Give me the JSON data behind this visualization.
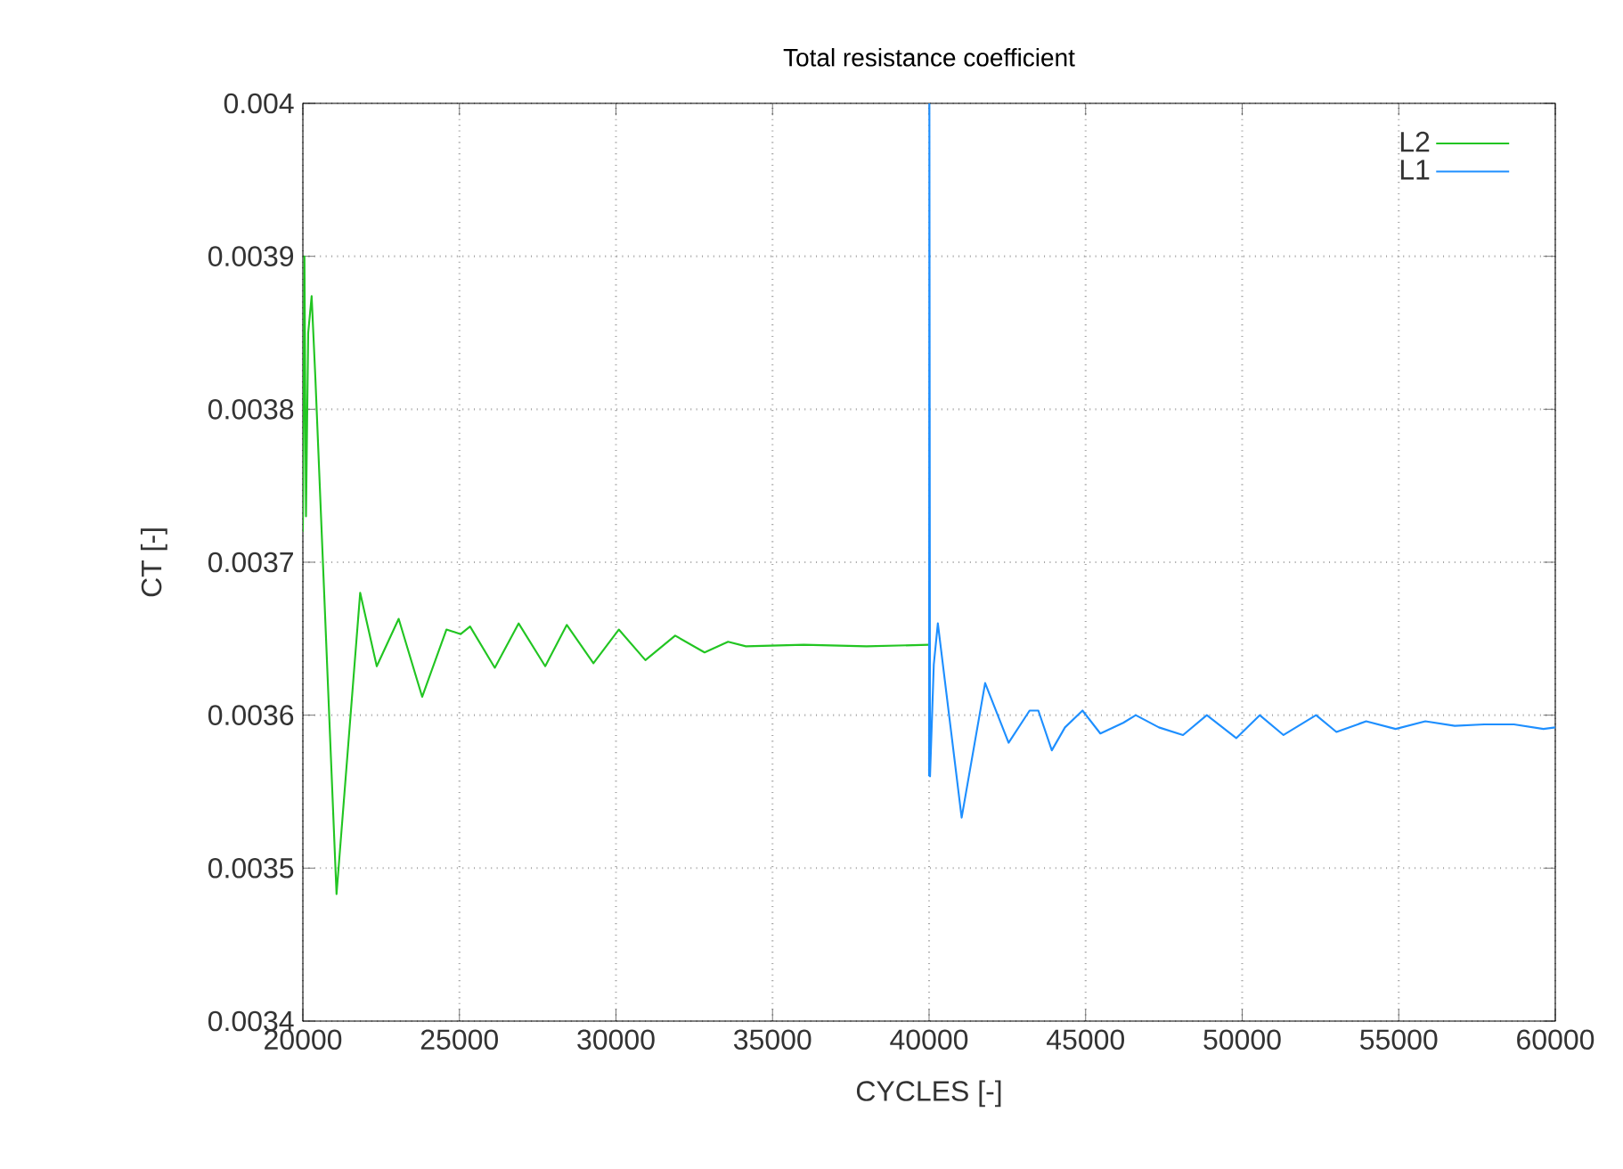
{
  "chart_data": {
    "type": "line",
    "title": "Total resistance coefficient",
    "xlabel": "CYCLES [-]",
    "ylabel": "CT [-]",
    "xlim": [
      20000,
      60000
    ],
    "ylim": [
      0.0034,
      0.004
    ],
    "xticks": [
      20000,
      25000,
      30000,
      35000,
      40000,
      45000,
      50000,
      55000,
      60000
    ],
    "yticks": [
      0.0034,
      0.0035,
      0.0036,
      0.0037,
      0.0038,
      0.0039,
      0.004
    ],
    "grid": true,
    "legend": "top right",
    "marker": "none",
    "line_style": "solid",
    "series": [
      {
        "name": "L2",
        "color": "#22c522",
        "x": [
          20000,
          20050,
          20100,
          20170,
          20280,
          20400,
          20660,
          21075,
          21830,
          22360,
          23060,
          23810,
          24585,
          25040,
          25340,
          26130,
          26890,
          27740,
          28430,
          29280,
          30090,
          30940,
          31890,
          32830,
          33580,
          34150,
          36000,
          38000,
          40000
        ],
        "values": [
          0.00372,
          0.0039,
          0.00373,
          0.00385,
          0.003874,
          0.00382,
          0.00369,
          0.003483,
          0.00368,
          0.003632,
          0.003663,
          0.003612,
          0.003656,
          0.003653,
          0.003658,
          0.003631,
          0.00366,
          0.003632,
          0.003659,
          0.003634,
          0.003656,
          0.003636,
          0.003652,
          0.003641,
          0.003648,
          0.003645,
          0.003646,
          0.003645,
          0.003646
        ]
      },
      {
        "name": "L1",
        "color": "#1e8fff",
        "x": [
          40000,
          40010,
          40030,
          40150,
          40280,
          41040,
          41790,
          42540,
          43210,
          43490,
          43920,
          44340,
          44900,
          45470,
          46200,
          46600,
          47340,
          48110,
          48870,
          49810,
          50560,
          51320,
          52360,
          53010,
          53960,
          54900,
          55850,
          56790,
          57730,
          58680,
          59620,
          60000
        ],
        "values": [
          0.00356,
          0.004,
          0.00356,
          0.003633,
          0.00366,
          0.003533,
          0.003621,
          0.003582,
          0.003603,
          0.003603,
          0.003577,
          0.003592,
          0.003603,
          0.003588,
          0.003595,
          0.0036,
          0.003592,
          0.003587,
          0.0036,
          0.003585,
          0.0036,
          0.003587,
          0.0036,
          0.003589,
          0.003596,
          0.003591,
          0.003596,
          0.003593,
          0.003594,
          0.003594,
          0.003591,
          0.003592
        ]
      }
    ]
  }
}
